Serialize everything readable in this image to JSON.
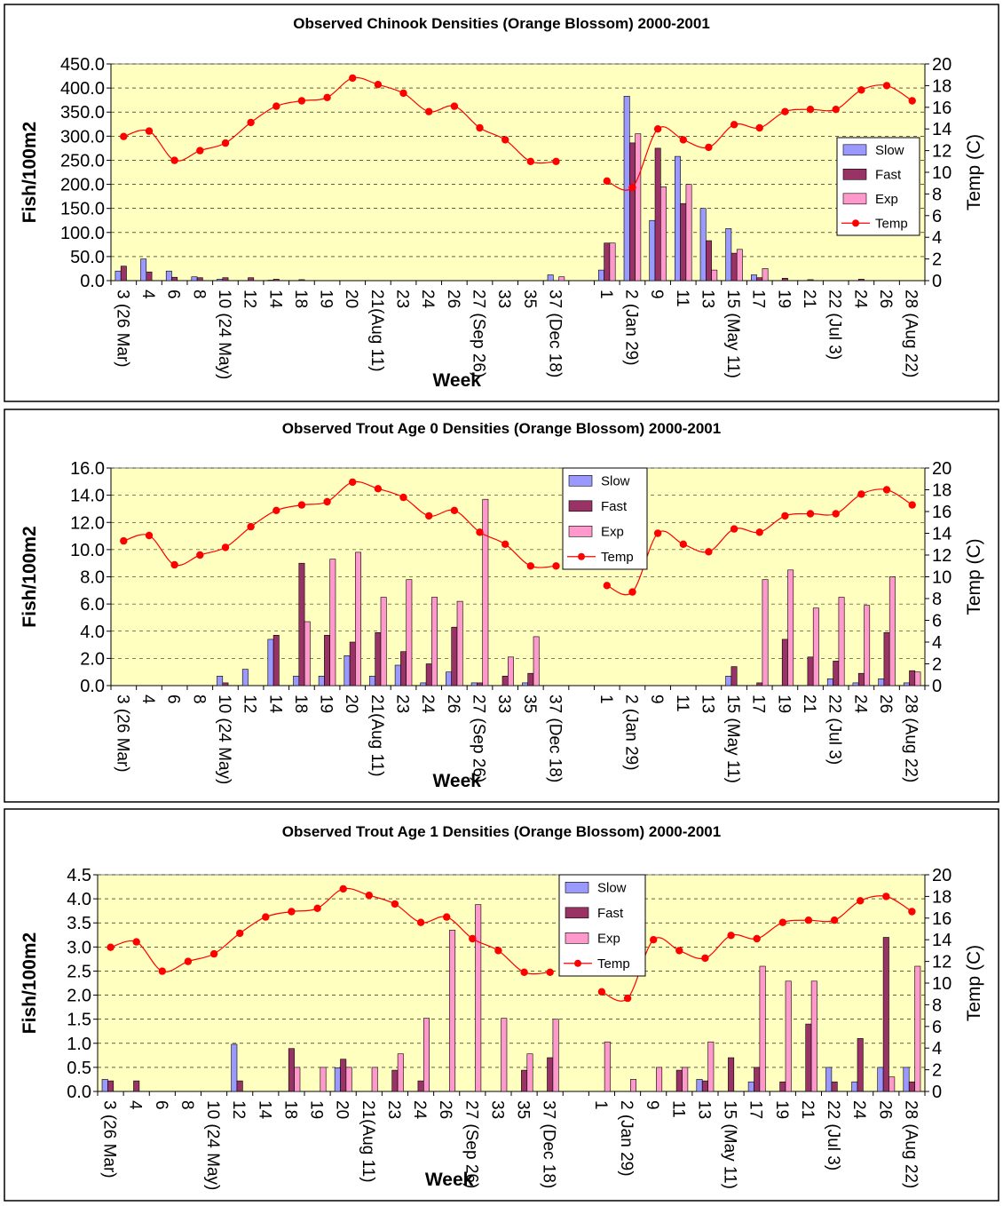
{
  "colors": {
    "plot_bg": "#FFFFC0",
    "slow": "#9999FF",
    "fast": "#993366",
    "exp": "#FF99CC",
    "temp": "#FF0000",
    "frame": "#000000"
  },
  "weeks": [
    "3 (26 Mar)",
    "4",
    "6",
    "8",
    "10 (24 May)",
    "12",
    "14",
    "18",
    "19",
    "20",
    "21(Aug 11)",
    "23",
    "24",
    "26",
    "27 (Sep 26)",
    "33",
    "35",
    "37 (Dec 18)",
    "",
    "1",
    "2 (Jan 29)",
    "9",
    "11",
    "13",
    "15 (May 11)",
    "17",
    "19",
    "21",
    "22 (Jul 3)",
    "24",
    "26",
    "28 (Aug 22)"
  ],
  "temperature": [
    13.3,
    13.8,
    11.1,
    12.0,
    12.7,
    14.6,
    16.1,
    16.6,
    16.9,
    18.7,
    18.1,
    17.3,
    15.6,
    16.1,
    14.1,
    13.0,
    11.0,
    11.0,
    null,
    9.2,
    8.6,
    14.0,
    13.0,
    12.3,
    14.4,
    14.1,
    15.6,
    15.8,
    15.8,
    17.6,
    18.0,
    16.6
  ],
  "chart_data": [
    {
      "type": "bar",
      "title": "Observed Chinook  Densities (Orange Blossom) 2000-2001",
      "xlabel": "Week",
      "ylabel": "Fish/100m2",
      "y2label": "Temp (C)",
      "ylim": [
        0,
        450
      ],
      "y2lim": [
        0,
        20
      ],
      "yticks": [
        "0.0",
        "50.0",
        "100.0",
        "150.0",
        "200.0",
        "250.0",
        "300.0",
        "350.0",
        "400.0",
        "450.0"
      ],
      "y2ticks": [
        "0",
        "2",
        "4",
        "6",
        "8",
        "10",
        "12",
        "14",
        "16",
        "18",
        "20"
      ],
      "legend": [
        "Slow",
        "Fast",
        "Exp",
        "Temp"
      ],
      "legend_position": "right",
      "series": [
        {
          "name": "Slow",
          "values": [
            20,
            45,
            20,
            8,
            3,
            0,
            1,
            0,
            0,
            0,
            0,
            0,
            0,
            0,
            0,
            0,
            0,
            12,
            0,
            22,
            383,
            125,
            258,
            150,
            108,
            12,
            0,
            0,
            0,
            0,
            0,
            0
          ]
        },
        {
          "name": "Fast",
          "values": [
            30,
            18,
            7,
            6,
            6,
            6,
            3,
            2,
            0,
            0,
            0,
            0,
            0,
            0,
            0,
            0,
            0,
            0,
            0,
            78,
            286,
            275,
            160,
            83,
            57,
            6,
            5,
            2,
            0,
            3,
            0,
            0
          ]
        },
        {
          "name": "Exp",
          "values": [
            0,
            0,
            0,
            0,
            0,
            0,
            0,
            0,
            0,
            0,
            0,
            0,
            0,
            0,
            0,
            0,
            0,
            8,
            0,
            78,
            305,
            195,
            200,
            22,
            65,
            25,
            0,
            0,
            0,
            0,
            0,
            0
          ]
        }
      ]
    },
    {
      "type": "bar",
      "title": "Observed Trout Age 0  Densities (Orange Blossom) 2000-2001",
      "xlabel": "Week",
      "ylabel": "Fish/100m2",
      "y2label": "Temp (C)",
      "ylim": [
        0,
        16
      ],
      "y2lim": [
        0,
        20
      ],
      "yticks": [
        "0.0",
        "2.0",
        "4.0",
        "6.0",
        "8.0",
        "10.0",
        "12.0",
        "14.0",
        "16.0"
      ],
      "y2ticks": [
        "0",
        "2",
        "4",
        "6",
        "8",
        "10",
        "12",
        "14",
        "16",
        "18",
        "20"
      ],
      "legend": [
        "Slow",
        "Fast",
        "Exp",
        "Temp"
      ],
      "legend_position": "top-center",
      "series": [
        {
          "name": "Slow",
          "values": [
            0,
            0,
            0,
            0,
            0.7,
            1.2,
            3.4,
            0.7,
            0.7,
            2.2,
            0.7,
            1.5,
            0.2,
            1.0,
            0.2,
            0,
            0.2,
            0,
            0,
            0,
            0,
            0,
            0,
            0,
            0.7,
            0,
            0,
            0,
            0.5,
            0.2,
            0.5,
            0.2
          ]
        },
        {
          "name": "Fast",
          "values": [
            0,
            0,
            0,
            0,
            0.2,
            0,
            3.7,
            9.0,
            3.7,
            3.2,
            3.9,
            2.5,
            1.6,
            4.3,
            0.2,
            0.7,
            0.9,
            0,
            0,
            0,
            0,
            0,
            0,
            0,
            1.4,
            0.2,
            3.4,
            2.1,
            1.8,
            0.9,
            3.9,
            1.1
          ]
        },
        {
          "name": "Exp",
          "values": [
            0,
            0,
            0,
            0,
            0,
            0,
            0,
            4.7,
            9.3,
            9.8,
            6.5,
            7.8,
            6.5,
            6.2,
            13.7,
            2.1,
            3.6,
            0,
            0,
            0,
            0,
            0,
            0,
            0,
            0,
            7.8,
            8.5,
            5.7,
            6.5,
            5.9,
            8.0,
            1.0
          ]
        }
      ]
    },
    {
      "type": "bar",
      "title": "Observed Trout Age 1  Densities (Orange Blossom) 2000-2001",
      "xlabel": "Week",
      "ylabel": "Fish/100m2",
      "y2label": "Temp (C)",
      "ylim": [
        0,
        4.5
      ],
      "y2lim": [
        0,
        20
      ],
      "yticks": [
        "0.0",
        "0.5",
        "1.0",
        "1.5",
        "2.0",
        "2.5",
        "3.0",
        "3.5",
        "4.0",
        "4.5"
      ],
      "y2ticks": [
        "0",
        "2",
        "4",
        "6",
        "8",
        "10",
        "12",
        "14",
        "16",
        "18",
        "20"
      ],
      "legend": [
        "Slow",
        "Fast",
        "Exp",
        "Temp"
      ],
      "legend_position": "top-center",
      "series": [
        {
          "name": "Slow",
          "values": [
            0.25,
            0,
            0,
            0,
            0,
            0.98,
            0,
            0,
            0,
            0.49,
            0,
            0,
            0,
            0,
            0,
            0,
            0,
            0,
            0,
            0,
            0,
            0,
            0,
            0.25,
            0,
            0.2,
            0,
            0,
            0.5,
            0.2,
            0.5,
            0.5
          ]
        },
        {
          "name": "Fast",
          "values": [
            0.22,
            0.22,
            0,
            0,
            0,
            0.22,
            0,
            0.89,
            0,
            0.67,
            0,
            0.44,
            0.22,
            0,
            0,
            0,
            0.44,
            0.7,
            0,
            0,
            0,
            0,
            0.44,
            0.22,
            0.7,
            0.5,
            0.2,
            1.4,
            0.2,
            1.1,
            3.2,
            0.2
          ]
        },
        {
          "name": "Exp",
          "values": [
            0,
            0,
            0,
            0,
            0,
            0,
            0,
            0.5,
            0.5,
            0.5,
            0.5,
            0.78,
            1.52,
            3.35,
            3.88,
            1.52,
            0.78,
            1.5,
            0,
            1.03,
            0.25,
            0.5,
            0.5,
            1.03,
            0,
            2.6,
            2.29,
            2.29,
            0,
            0,
            0.3,
            2.6
          ]
        }
      ]
    }
  ]
}
